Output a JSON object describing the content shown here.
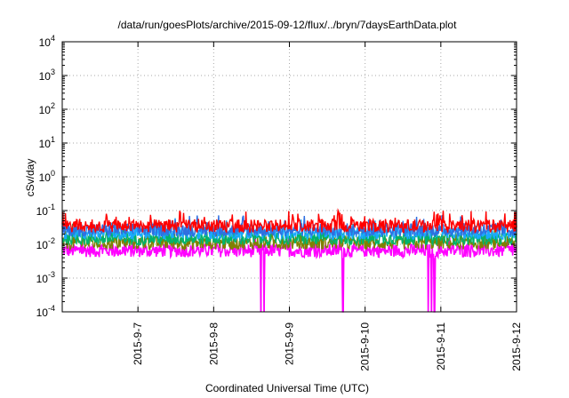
{
  "chart_data": {
    "type": "line",
    "title": "/data/run/goesPlots/archive/2015-09-12/flux/../bryn/7daysEarthData.plot",
    "xlabel": "Coordinated Universal Time (UTC)",
    "ylabel": "cSv/day",
    "y_scale": "log",
    "ylim": [
      0.0001,
      10000
    ],
    "xlim": [
      "2015-09-06",
      "2015-09-12"
    ],
    "y_ticks": [
      {
        "value": 0.0001,
        "base": "10",
        "exp": "-4"
      },
      {
        "value": 0.001,
        "base": "10",
        "exp": "-3"
      },
      {
        "value": 0.01,
        "base": "10",
        "exp": "-2"
      },
      {
        "value": 0.1,
        "base": "10",
        "exp": "-1"
      },
      {
        "value": 1,
        "base": "10",
        "exp": "0"
      },
      {
        "value": 10,
        "base": "10",
        "exp": "1"
      },
      {
        "value": 100,
        "base": "10",
        "exp": "2"
      },
      {
        "value": 1000,
        "base": "10",
        "exp": "3"
      },
      {
        "value": 10000,
        "base": "10",
        "exp": "4"
      }
    ],
    "x_ticks": [
      "2015-9-7",
      "2015-9-8",
      "2015-9-9",
      "2015-9-10",
      "2015-9-11",
      "2015-9-12"
    ],
    "grid": true,
    "series": [
      {
        "color": "#ff0000",
        "x": [
          "2015-09-06",
          "2015-09-12"
        ],
        "y": [
          0.035,
          0.035
        ],
        "spikes": [
          0.08,
          0.07
        ]
      },
      {
        "color": "#2f6fe0",
        "x": [
          "2015-09-06",
          "2015-09-12"
        ],
        "y": [
          0.027,
          0.027
        ]
      },
      {
        "color": "#19a9ff",
        "x": [
          "2015-09-06",
          "2015-09-12"
        ],
        "y": [
          0.022,
          0.022
        ]
      },
      {
        "color": "#00b36b",
        "x": [
          "2015-09-06",
          "2015-09-12"
        ],
        "y": [
          0.015,
          0.015
        ]
      },
      {
        "color": "#808000",
        "x": [
          "2015-09-06",
          "2015-09-12"
        ],
        "y": [
          0.011,
          0.011
        ]
      },
      {
        "color": "#ff00ff",
        "x": [
          "2015-09-06",
          "2015-09-12"
        ],
        "y": [
          0.0065,
          0.0065
        ],
        "dropouts": [
          "2015-09-08 15:00",
          "2015-09-08 16:00",
          "2015-09-09 17:00",
          "2015-09-10 20:00",
          "2015-09-10 21:00",
          "2015-09-10 22:00"
        ]
      }
    ]
  }
}
